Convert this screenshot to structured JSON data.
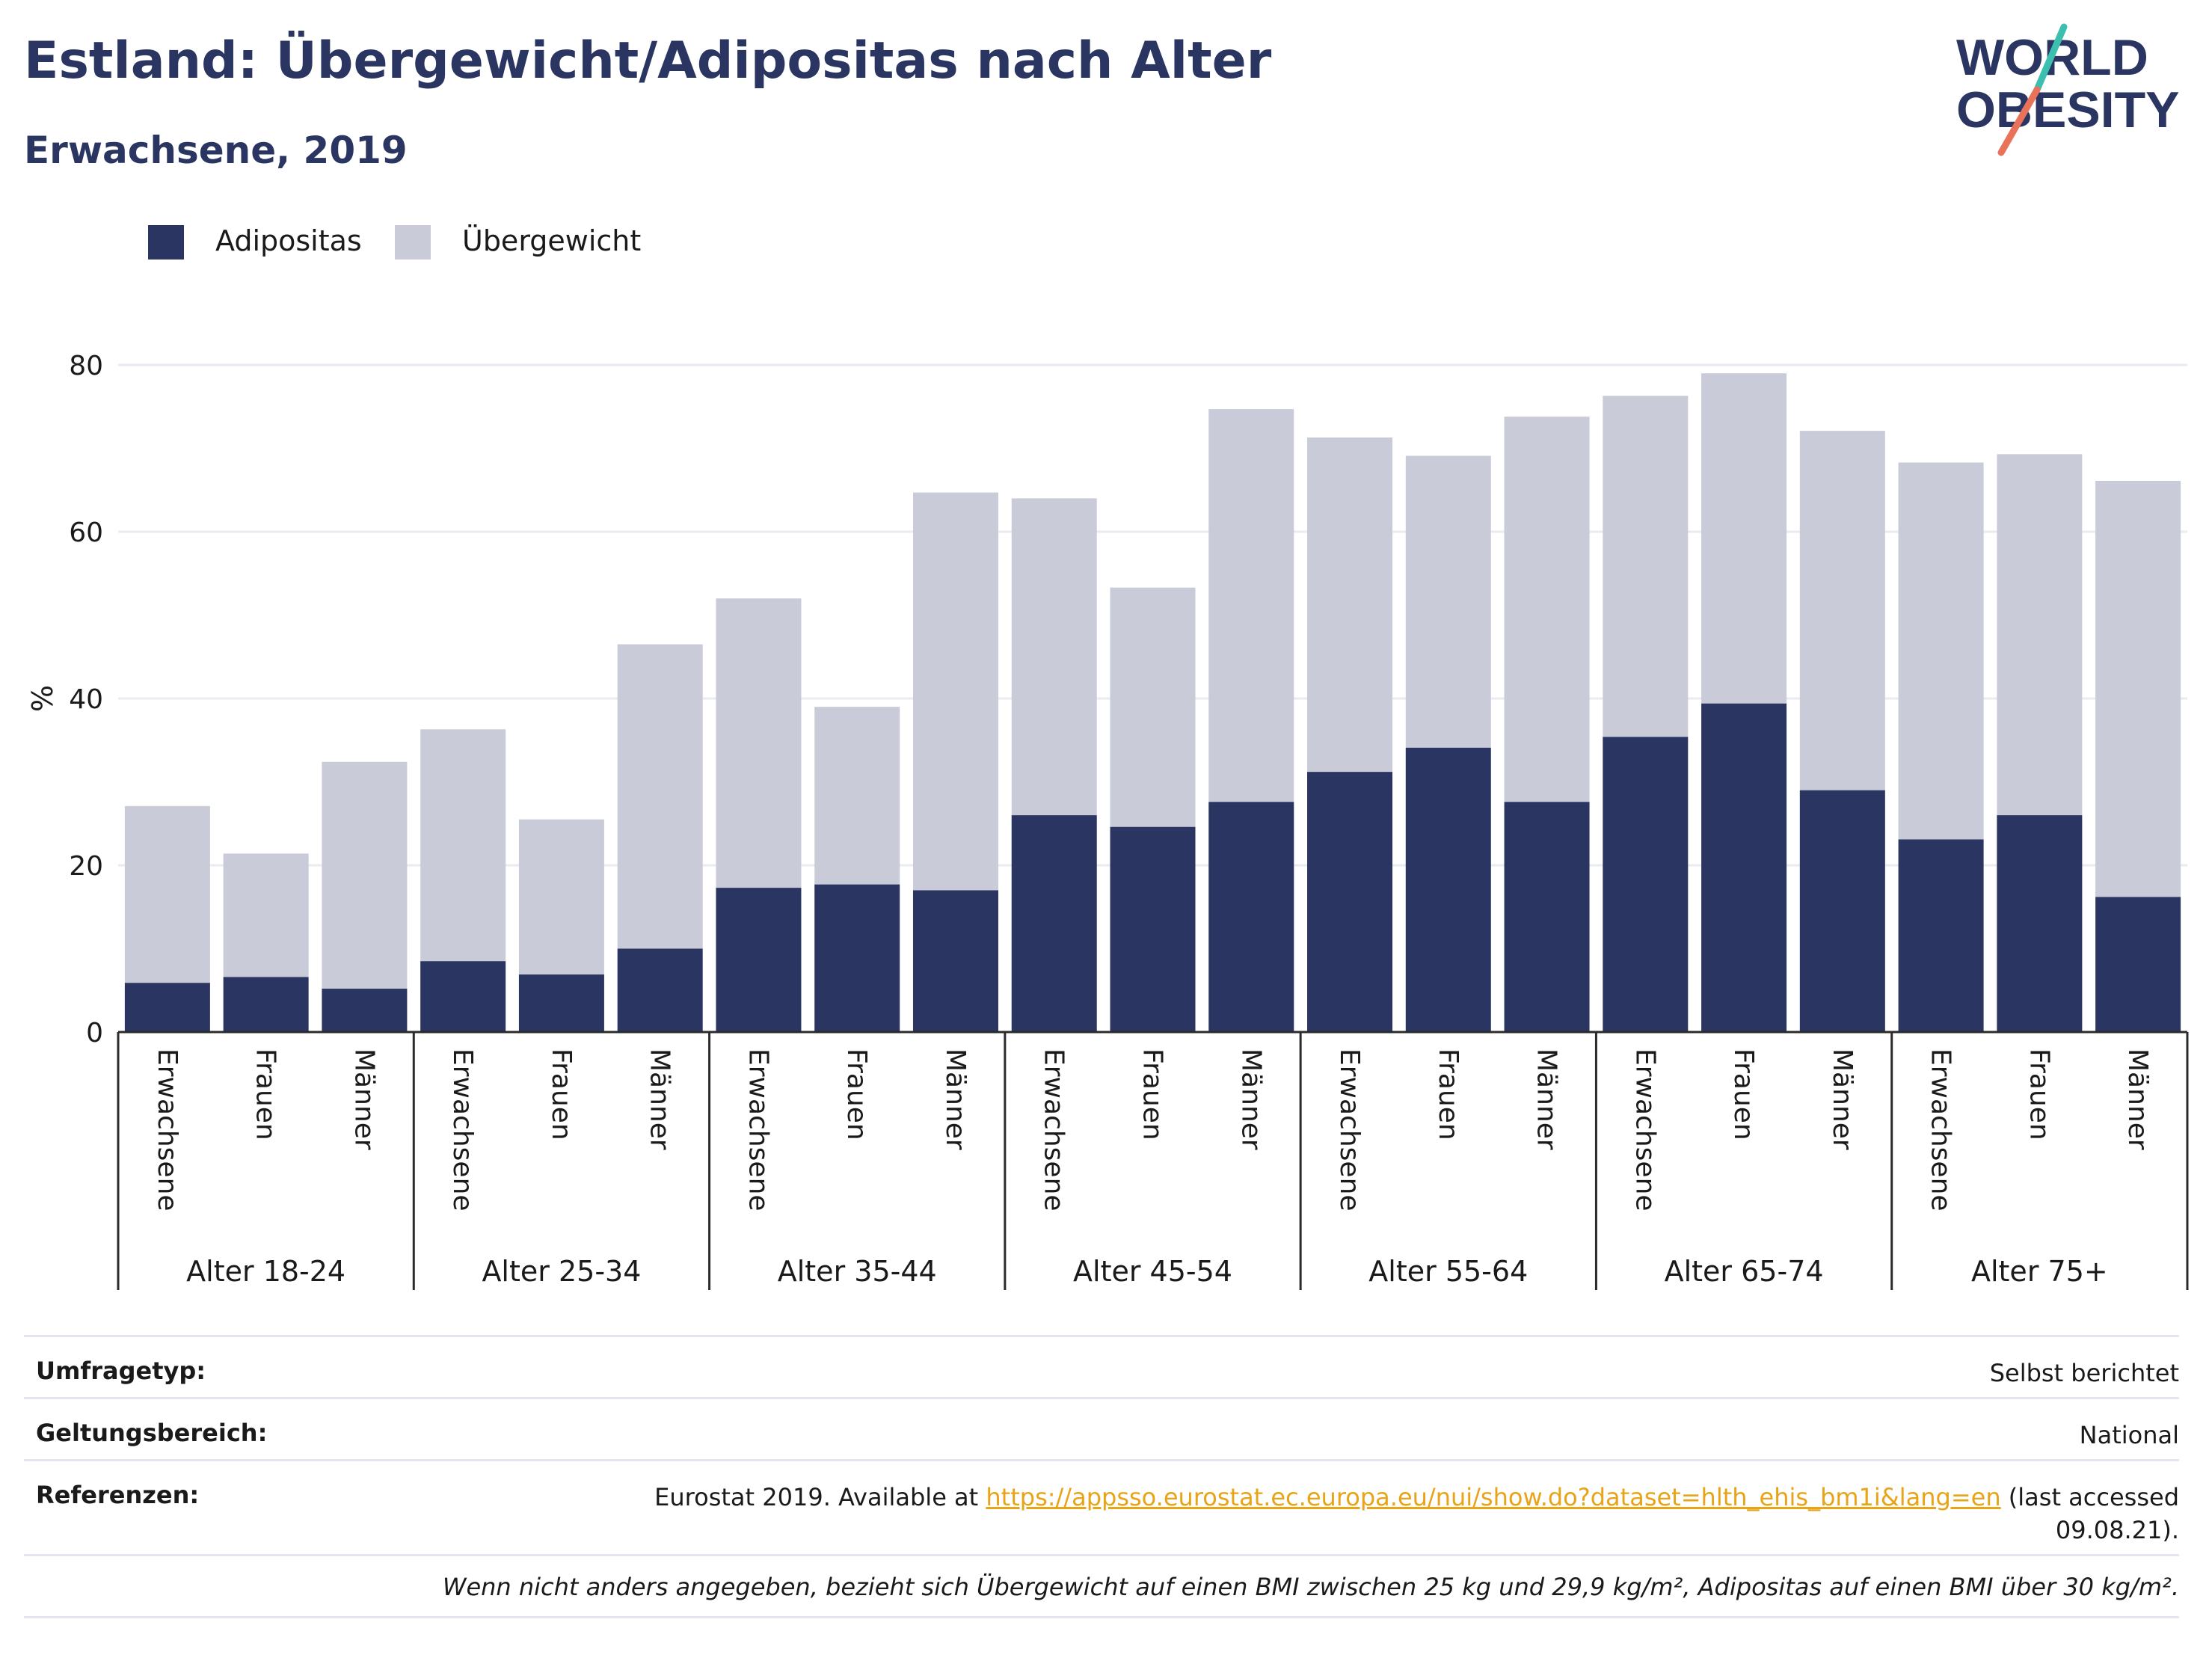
{
  "header": {
    "title": "Estland: Übergewicht/Adipositas nach Alter",
    "subtitle": "Erwachsene, 2019"
  },
  "logo": {
    "line1": "WORLD",
    "line2": "OBESITY",
    "colors": {
      "text": "#2a3561",
      "slash_orange": "#e8735a",
      "slash_teal": "#3cbfae"
    }
  },
  "colors": {
    "obesity": "#2a3561",
    "overweight": "#c9cbd8",
    "grid": "#e9ebf0",
    "axis": "#2b2b2b"
  },
  "chart_data": {
    "type": "bar",
    "stacked": true,
    "title": "",
    "xlabel": "",
    "ylabel": "%",
    "ylim": [
      0,
      80
    ],
    "yticks": [
      0,
      20,
      40,
      60,
      80
    ],
    "grid": true,
    "legend_position": "top-left",
    "groups": [
      {
        "label": "Alter 18-24",
        "categories": [
          "Erwachsene",
          "Frauen",
          "Männer"
        ]
      },
      {
        "label": "Alter 25-34",
        "categories": [
          "Erwachsene",
          "Frauen",
          "Männer"
        ]
      },
      {
        "label": "Alter 35-44",
        "categories": [
          "Erwachsene",
          "Frauen",
          "Männer"
        ]
      },
      {
        "label": "Alter 45-54",
        "categories": [
          "Erwachsene",
          "Frauen",
          "Männer"
        ]
      },
      {
        "label": "Alter 55-64",
        "categories": [
          "Erwachsene",
          "Frauen",
          "Männer"
        ]
      },
      {
        "label": "Alter 65-74",
        "categories": [
          "Erwachsene",
          "Frauen",
          "Männer"
        ]
      },
      {
        "label": "Alter 75+",
        "categories": [
          "Erwachsene",
          "Frauen",
          "Männer"
        ]
      }
    ],
    "series": [
      {
        "name": "Adipositas",
        "values": [
          5.9,
          6.6,
          5.2,
          8.5,
          6.9,
          10.0,
          17.3,
          17.7,
          17.0,
          26.0,
          24.6,
          27.6,
          31.2,
          34.1,
          27.6,
          35.4,
          39.4,
          29.0,
          23.1,
          26.0,
          16.2
        ]
      },
      {
        "name": "Übergewicht",
        "values": [
          21.2,
          14.8,
          27.2,
          27.8,
          18.6,
          36.5,
          34.7,
          21.3,
          47.7,
          38.0,
          28.7,
          47.1,
          40.1,
          35.0,
          46.2,
          40.9,
          39.6,
          43.1,
          45.2,
          43.3,
          49.9
        ]
      }
    ]
  },
  "info": {
    "survey_type": {
      "label": "Umfragetyp:",
      "value": "Selbst berichtet"
    },
    "scope": {
      "label": "Geltungsbereich:",
      "value": "National"
    },
    "references": {
      "label": "Referenzen:",
      "prefix": "Eurostat 2019. Available at ",
      "url": "https://appsso.eurostat.ec.europa.eu/nui/show.do?dataset=hlth_ehis_bm1i&lang=en",
      "suffix": " (last accessed",
      "line2": "09.08.21)."
    },
    "note": "Wenn nicht anders angegeben, bezieht sich Übergewicht auf einen BMI zwischen 25 kg und 29,9 kg/m², Adipositas auf einen BMI über 30 kg/m²."
  }
}
